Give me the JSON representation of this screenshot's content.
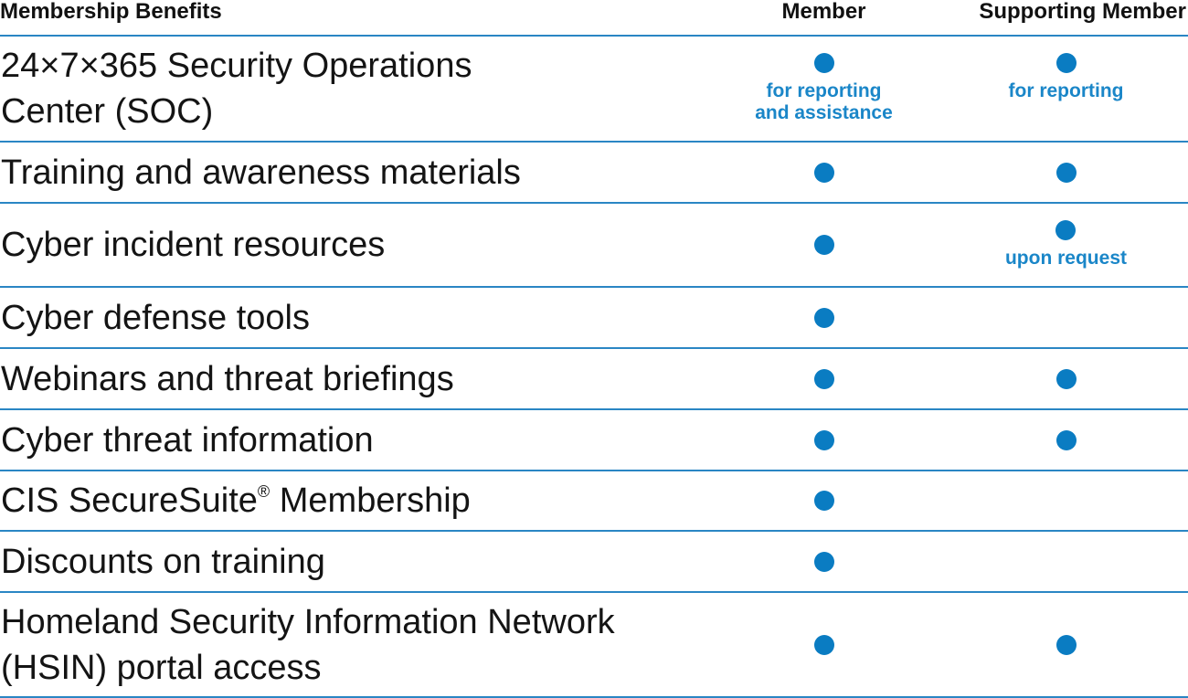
{
  "header": {
    "benefits": "Membership Benefits",
    "member": "Member",
    "supporting": "Supporting Member"
  },
  "colors": {
    "accent": "#0a7cc2",
    "rule": "#2a86c4",
    "note": "#1a86c8"
  },
  "rows": [
    {
      "label_line1": "24×7×365 Security Operations",
      "label_line2": "Center (SOC)",
      "member": true,
      "member_note_line1": "for reporting",
      "member_note_line2": "and assistance",
      "supporting": true,
      "supporting_note": "for reporting"
    },
    {
      "label": "Training and awareness materials",
      "member": true,
      "supporting": true
    },
    {
      "label": "Cyber incident resources",
      "member": true,
      "supporting": true,
      "supporting_note": "upon request"
    },
    {
      "label": "Cyber defense tools",
      "member": true,
      "supporting": false
    },
    {
      "label": "Webinars and threat briefings",
      "member": true,
      "supporting": true
    },
    {
      "label": "Cyber threat information",
      "member": true,
      "supporting": true
    },
    {
      "label": "CIS SecureSuite",
      "label_mark": "®",
      "label_rest": " Membership",
      "member": true,
      "supporting": false
    },
    {
      "label": "Discounts on training",
      "member": true,
      "supporting": false
    },
    {
      "label_line1": "Homeland Security Information Network",
      "label_line2": "(HSIN) portal access",
      "member": true,
      "supporting": true
    }
  ]
}
